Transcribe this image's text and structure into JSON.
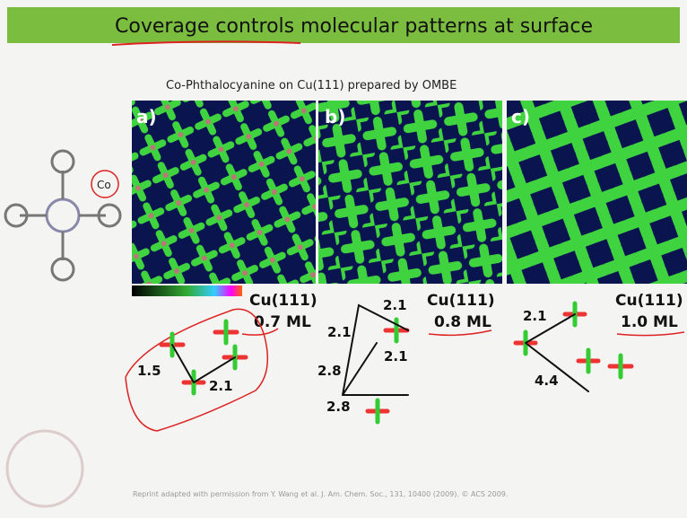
{
  "header": {
    "title": "Coverage controls molecular patterns at surface"
  },
  "subtitle": "Co-Phthalocyanine on Cu(111) prepared by OMBE",
  "molecule": {
    "label": "Co"
  },
  "panels": [
    {
      "label": "a)",
      "substrate": "Cu(111)",
      "coverage": "0.7 ML",
      "distances": [
        "1.5",
        "2.1"
      ]
    },
    {
      "label": "b)",
      "substrate": "Cu(111)",
      "coverage": "0.8 ML",
      "distances": [
        "2.1",
        "2.1",
        "2.1",
        "2.8",
        "2.8"
      ]
    },
    {
      "label": "c)",
      "substrate": "Cu(111)",
      "coverage": "1.0 ML",
      "distances": [
        "2.1",
        "4.4"
      ]
    }
  ],
  "footer": "Reprint adapted with permission from Y. Wang et al. J. Am. Chem. Soc., 131, 10400 (2009). © ACS 2009."
}
